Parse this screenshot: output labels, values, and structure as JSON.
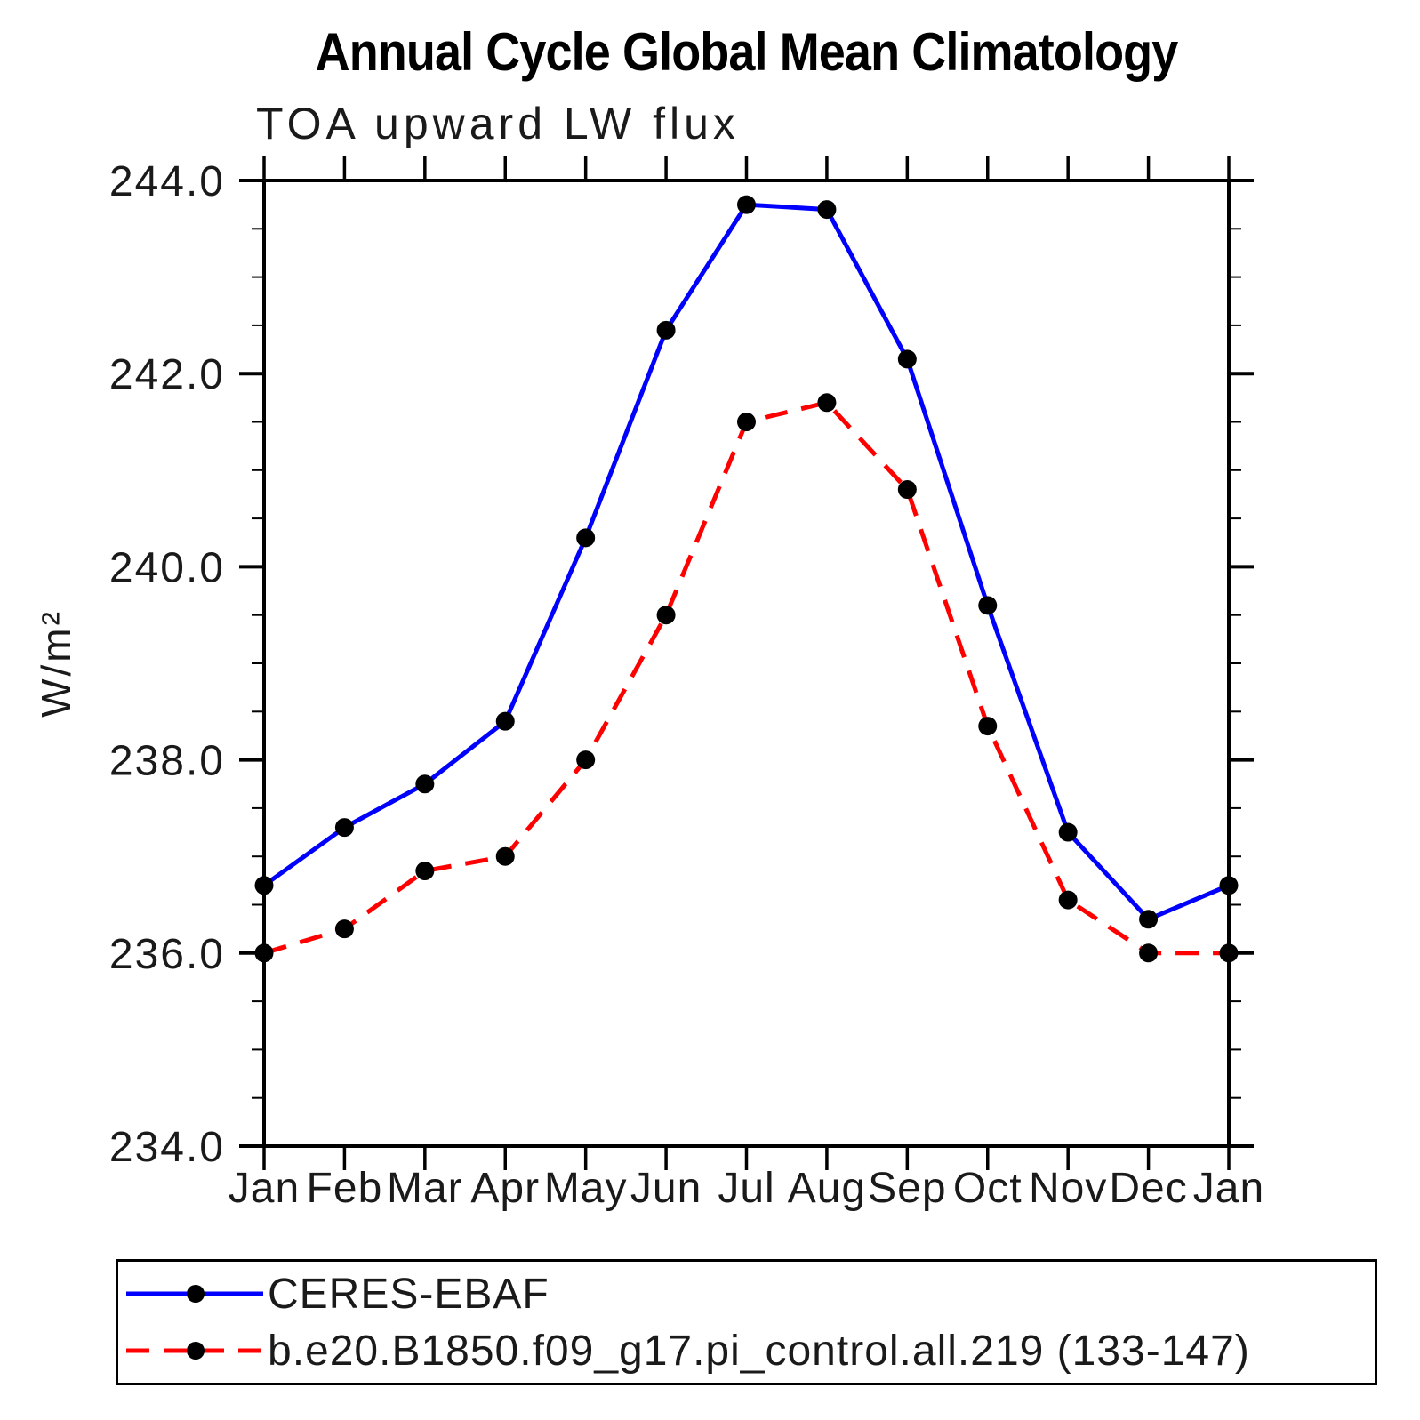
{
  "chart_data": {
    "type": "line",
    "title": "Annual Cycle Global Mean Climatology",
    "subtitle": "TOA upward LW flux",
    "ylabel": "W/m²",
    "xlabel": "",
    "x_categories": [
      "Jan",
      "Feb",
      "Mar",
      "Apr",
      "May",
      "Jun",
      "Jul",
      "Aug",
      "Sep",
      "Oct",
      "Nov",
      "Dec",
      "Jan"
    ],
    "ylim": [
      234.0,
      244.0
    ],
    "ytick_labels": [
      "234.0",
      "236.0",
      "238.0",
      "240.0",
      "242.0",
      "244.0"
    ],
    "ytick_major_interval": 2.0,
    "ytick_minor_interval": 0.5,
    "grid": false,
    "axis_color": "#000000",
    "marker": "filled-circle",
    "marker_color": "#000000",
    "legend_position": "bottom-left-box",
    "series": [
      {
        "name": "CERES-EBAF",
        "color": "#0000ff",
        "line_style": "solid",
        "values": [
          236.7,
          237.3,
          237.75,
          238.4,
          240.3,
          242.45,
          243.75,
          243.7,
          242.15,
          239.6,
          237.25,
          236.35,
          236.7
        ]
      },
      {
        "name": "b.e20.B1850.f09_g17.pi_control.all.219 (133-147)",
        "color": "#ff0000",
        "line_style": "dashed",
        "values": [
          236.0,
          236.25,
          236.85,
          237.0,
          238.0,
          239.5,
          241.5,
          241.7,
          240.8,
          238.35,
          236.55,
          236.0,
          236.0
        ]
      }
    ]
  }
}
